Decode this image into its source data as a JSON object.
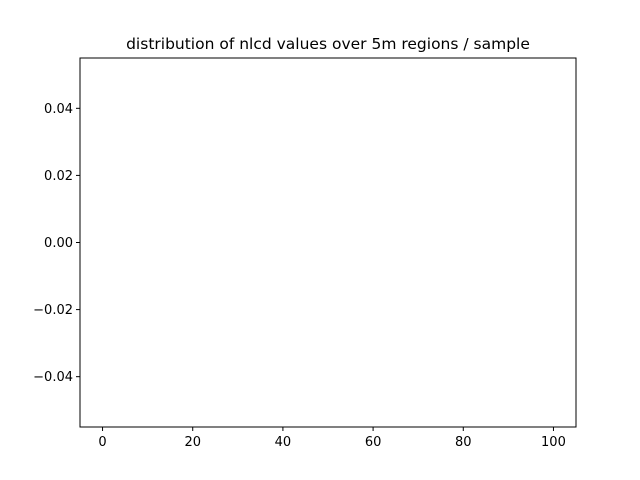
{
  "chart_data": {
    "type": "line",
    "title": "distribution of nlcd values over 5m regions / sample",
    "xlabel": "",
    "ylabel": "",
    "x": [],
    "series": [],
    "xlim": [
      -5,
      105
    ],
    "ylim": [
      -0.055,
      0.055
    ],
    "x_ticks": [
      0,
      20,
      40,
      60,
      80,
      100
    ],
    "x_tick_labels": [
      "0",
      "20",
      "40",
      "60",
      "80",
      "100"
    ],
    "y_ticks": [
      0.04,
      0.02,
      0.0,
      -0.02,
      -0.04
    ],
    "y_tick_labels": [
      "0.04",
      "0.02",
      "0.00",
      "−0.02",
      "−0.04"
    ],
    "grid": false,
    "legend": "none",
    "colors": {
      "axes": "#000000",
      "background": "#ffffff"
    }
  }
}
